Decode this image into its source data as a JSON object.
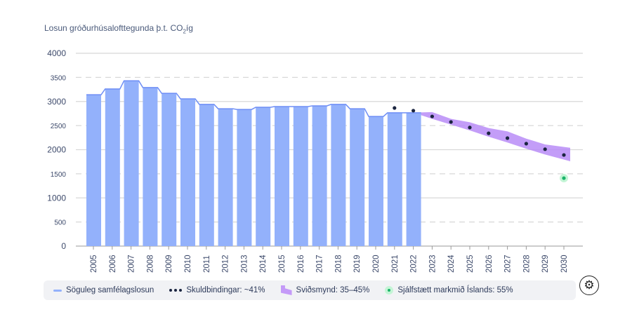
{
  "chart_data": {
    "type": "bar",
    "title": "Losun gróðurhúsalofttegunda þ.t. CO",
    "title_sub": "2",
    "title_suffix": "íg",
    "ylim": [
      0,
      4000
    ],
    "yticks": [
      0,
      500,
      1000,
      1500,
      2000,
      2500,
      3000,
      3500,
      4000
    ],
    "grid": true,
    "categories": [
      "2005",
      "2006",
      "2007",
      "2008",
      "2009",
      "2010",
      "2011",
      "2012",
      "2013",
      "2014",
      "2015",
      "2016",
      "2017",
      "2018",
      "2019",
      "2020",
      "2021",
      "2022",
      "2023",
      "2024",
      "2025",
      "2026",
      "2027",
      "2028",
      "2029",
      "2030"
    ],
    "series": [
      {
        "name": "Söguleg samfélagslosun",
        "type": "bar+line",
        "color": "#93b1fb",
        "x": [
          "2005",
          "2006",
          "2007",
          "2008",
          "2009",
          "2010",
          "2011",
          "2012",
          "2013",
          "2014",
          "2015",
          "2016",
          "2017",
          "2018",
          "2019",
          "2020",
          "2021",
          "2022"
        ],
        "values": [
          3140,
          3260,
          3430,
          3290,
          3170,
          3055,
          2940,
          2850,
          2835,
          2880,
          2895,
          2895,
          2910,
          2940,
          2850,
          2690,
          2765,
          2765
        ]
      },
      {
        "name": "Skuldbindingar: ~41%",
        "type": "scatter",
        "color": "#1b2540",
        "x": [
          "2021",
          "2022",
          "2023",
          "2024",
          "2025",
          "2026",
          "2027",
          "2028",
          "2029",
          "2030"
        ],
        "values": [
          2865,
          2810,
          2690,
          2575,
          2460,
          2340,
          2240,
          2125,
          2010,
          1890
        ]
      },
      {
        "name": "Sviðsmynd: 35–45%",
        "type": "band",
        "color": "#b98cf7",
        "x": [
          "2022",
          "2023",
          "2024",
          "2025",
          "2026",
          "2027",
          "2028",
          "2029",
          "2030"
        ],
        "upper": [
          2770,
          2780,
          2640,
          2570,
          2450,
          2380,
          2230,
          2110,
          2040
        ],
        "lower": [
          2770,
          2640,
          2520,
          2400,
          2270,
          2150,
          2020,
          1900,
          1760
        ]
      },
      {
        "name": "Sjálfstætt markmið Íslands: 55%",
        "type": "scatter",
        "color": "#1bb36a",
        "x": [
          "2030"
        ],
        "values": [
          1410
        ]
      }
    ]
  },
  "legend": {
    "historical": "Söguleg samfélagslosun",
    "commitments": "Skuldbindingar: ~41%",
    "scenario": "Sviðsmynd: 35–45%",
    "target": "Sjálfstætt markmið Íslands: 55%"
  },
  "icons": {
    "settings": "gear-icon"
  }
}
